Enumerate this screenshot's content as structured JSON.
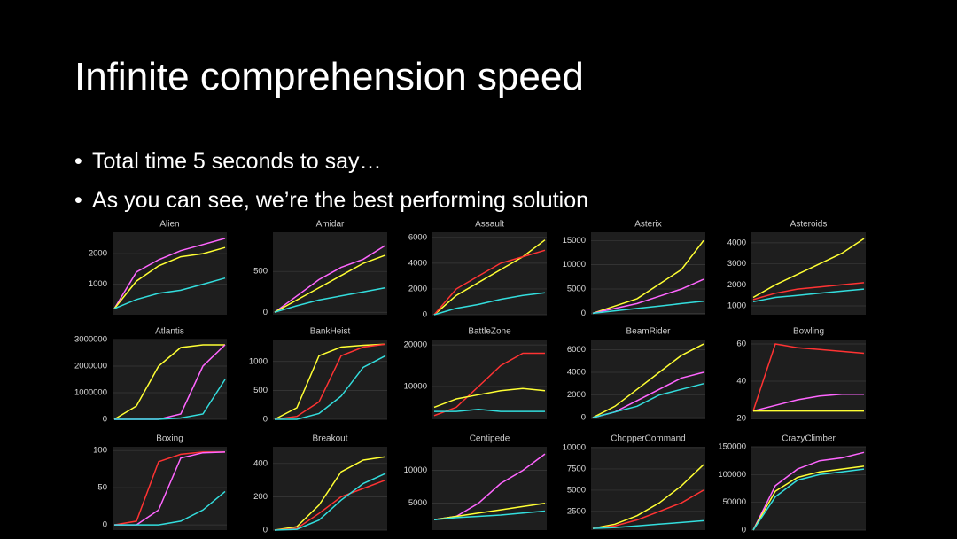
{
  "slide": {
    "title": "Infinite comprehension speed",
    "bullets": [
      "Total time 5 seconds to say…",
      "As you can see, we’re the best performing solution"
    ]
  },
  "chart_data": [
    {
      "type": "line",
      "title": "Alien",
      "ylim": [
        0,
        2700
      ],
      "yticks": [
        1000,
        2000
      ],
      "series": [
        {
          "color": "#ff66ff",
          "values": [
            200,
            1400,
            1800,
            2100,
            2300,
            2500
          ]
        },
        {
          "color": "#ffff33",
          "values": [
            200,
            1100,
            1600,
            1900,
            2000,
            2200
          ]
        },
        {
          "color": "#33dddd",
          "values": [
            200,
            500,
            700,
            800,
            1000,
            1200
          ]
        }
      ]
    },
    {
      "type": "line",
      "title": "Amidar",
      "ylim": [
        -30,
        980
      ],
      "yticks": [
        0,
        500
      ],
      "series": [
        {
          "color": "#ff66ff",
          "values": [
            0,
            200,
            400,
            550,
            650,
            820
          ]
        },
        {
          "color": "#ffff33",
          "values": [
            0,
            150,
            300,
            450,
            600,
            700
          ]
        },
        {
          "color": "#33dddd",
          "values": [
            0,
            80,
            150,
            200,
            250,
            300
          ]
        }
      ]
    },
    {
      "type": "line",
      "title": "Assault",
      "ylim": [
        0,
        6400
      ],
      "yticks": [
        0,
        2000,
        4000,
        6000
      ],
      "series": [
        {
          "color": "#ffff33",
          "values": [
            0,
            1500,
            2500,
            3500,
            4500,
            5800
          ]
        },
        {
          "color": "#ff3333",
          "values": [
            0,
            2000,
            3000,
            4000,
            4500,
            5000
          ]
        },
        {
          "color": "#33dddd",
          "values": [
            0,
            500,
            800,
            1200,
            1500,
            1700
          ]
        }
      ]
    },
    {
      "type": "line",
      "title": "Asterix",
      "ylim": [
        -300,
        16700
      ],
      "yticks": [
        0,
        5000,
        10000,
        15000
      ],
      "series": [
        {
          "color": "#ffff33",
          "values": [
            0,
            1500,
            3000,
            6000,
            9000,
            15000
          ]
        },
        {
          "color": "#ff66ff",
          "values": [
            0,
            1000,
            2000,
            3500,
            5000,
            7000
          ]
        },
        {
          "color": "#33dddd",
          "values": [
            0,
            500,
            1000,
            1500,
            2000,
            2500
          ]
        }
      ]
    },
    {
      "type": "line",
      "title": "Asteroids",
      "ylim": [
        580,
        4500
      ],
      "yticks": [
        1000,
        2000,
        3000,
        4000
      ],
      "series": [
        {
          "color": "#ffff33",
          "values": [
            1400,
            2000,
            2500,
            3000,
            3500,
            4200
          ]
        },
        {
          "color": "#ff3333",
          "values": [
            1300,
            1600,
            1800,
            1900,
            2000,
            2100
          ]
        },
        {
          "color": "#33dddd",
          "values": [
            1200,
            1400,
            1500,
            1600,
            1700,
            1800
          ]
        }
      ]
    },
    {
      "type": "line",
      "title": "Atlantis",
      "ylim": [
        0,
        3000000
      ],
      "yticks": [
        0,
        1000000,
        2000000,
        3000000
      ],
      "series": [
        {
          "color": "#ffff33",
          "values": [
            0,
            500000,
            2000000,
            2700000,
            2800000,
            2800000
          ]
        },
        {
          "color": "#ff66ff",
          "values": [
            0,
            0,
            0,
            200000,
            2000000,
            2800000
          ]
        },
        {
          "color": "#33dddd",
          "values": [
            0,
            0,
            0,
            50000,
            200000,
            1500000
          ]
        }
      ]
    },
    {
      "type": "line",
      "title": "BankHeist",
      "ylim": [
        0,
        1380
      ],
      "yticks": [
        0,
        500,
        1000
      ],
      "series": [
        {
          "color": "#ffff33",
          "values": [
            0,
            200,
            1100,
            1250,
            1280,
            1300
          ]
        },
        {
          "color": "#ff3333",
          "values": [
            0,
            50,
            300,
            1100,
            1250,
            1300
          ]
        },
        {
          "color": "#33dddd",
          "values": [
            0,
            0,
            100,
            400,
            900,
            1100
          ]
        }
      ]
    },
    {
      "type": "line",
      "title": "BattleZone",
      "ylim": [
        2100,
        21300
      ],
      "yticks": [
        10000,
        20000
      ],
      "series": [
        {
          "color": "#ff3333",
          "values": [
            3000,
            5000,
            10000,
            15000,
            18000,
            18000
          ]
        },
        {
          "color": "#ffff33",
          "values": [
            5000,
            7000,
            8000,
            9000,
            9500,
            9000
          ]
        },
        {
          "color": "#33dddd",
          "values": [
            4000,
            4000,
            4500,
            4000,
            4000,
            4000
          ]
        }
      ]
    },
    {
      "type": "line",
      "title": "BeamRider",
      "ylim": [
        -150,
        6900
      ],
      "yticks": [
        0,
        2000,
        4000,
        6000
      ],
      "series": [
        {
          "color": "#ffff33",
          "values": [
            0,
            1000,
            2500,
            4000,
            5500,
            6500
          ]
        },
        {
          "color": "#ff66ff",
          "values": [
            0,
            500,
            1500,
            2500,
            3500,
            4000
          ]
        },
        {
          "color": "#33dddd",
          "values": [
            0,
            500,
            1000,
            2000,
            2500,
            3000
          ]
        }
      ]
    },
    {
      "type": "line",
      "title": "Bowling",
      "ylim": [
        19.5,
        62.4
      ],
      "yticks": [
        20,
        40,
        60
      ],
      "series": [
        {
          "color": "#ff3333",
          "values": [
            24,
            60,
            58,
            57,
            56,
            55
          ]
        },
        {
          "color": "#ff66ff",
          "values": [
            24,
            27,
            30,
            32,
            33,
            33
          ]
        },
        {
          "color": "#ffff33",
          "values": [
            24,
            24,
            24,
            24,
            24,
            24
          ]
        }
      ]
    },
    {
      "type": "line",
      "title": "Boxing",
      "ylim": [
        -7,
        105
      ],
      "yticks": [
        0,
        50,
        100
      ],
      "series": [
        {
          "color": "#ff3333",
          "values": [
            0,
            5,
            85,
            95,
            98,
            98
          ]
        },
        {
          "color": "#ff66ff",
          "values": [
            0,
            0,
            20,
            90,
            97,
            98
          ]
        },
        {
          "color": "#33dddd",
          "values": [
            0,
            0,
            0,
            5,
            20,
            45
          ]
        }
      ]
    },
    {
      "type": "line",
      "title": "Breakout",
      "ylim": [
        0,
        500
      ],
      "yticks": [
        0,
        200,
        400
      ],
      "series": [
        {
          "color": "#ffff33",
          "values": [
            0,
            20,
            150,
            350,
            420,
            440
          ]
        },
        {
          "color": "#ff3333",
          "values": [
            0,
            10,
            100,
            200,
            250,
            300
          ]
        },
        {
          "color": "#33dddd",
          "values": [
            0,
            5,
            60,
            180,
            280,
            340
          ]
        }
      ]
    },
    {
      "type": "line",
      "title": "Centipede",
      "ylim": [
        900,
        13600
      ],
      "yticks": [
        5000,
        10000
      ],
      "series": [
        {
          "color": "#ff66ff",
          "values": [
            2500,
            3000,
            5000,
            8000,
            10000,
            12500
          ]
        },
        {
          "color": "#ffff33",
          "values": [
            2500,
            3000,
            3500,
            4000,
            4500,
            5000
          ]
        },
        {
          "color": "#33dddd",
          "values": [
            2500,
            2800,
            3000,
            3200,
            3500,
            3800
          ]
        }
      ]
    },
    {
      "type": "line",
      "title": "ChopperCommand",
      "ylim": [
        300,
        10100
      ],
      "yticks": [
        2500,
        5000,
        7500,
        10000
      ],
      "series": [
        {
          "color": "#ffff33",
          "values": [
            500,
            1000,
            2000,
            3500,
            5500,
            8000
          ]
        },
        {
          "color": "#ff3333",
          "values": [
            500,
            800,
            1500,
            2500,
            3500,
            5000
          ]
        },
        {
          "color": "#33dddd",
          "values": [
            500,
            600,
            800,
            1000,
            1200,
            1400
          ]
        }
      ]
    },
    {
      "type": "line",
      "title": "CrazyClimber",
      "ylim": [
        0,
        150000
      ],
      "yticks": [
        0,
        50000,
        100000,
        150000
      ],
      "series": [
        {
          "color": "#ff66ff",
          "values": [
            0,
            80000,
            110000,
            125000,
            130000,
            140000
          ]
        },
        {
          "color": "#ffff33",
          "values": [
            0,
            70000,
            95000,
            105000,
            110000,
            115000
          ]
        },
        {
          "color": "#33dddd",
          "values": [
            0,
            60000,
            90000,
            100000,
            105000,
            110000
          ]
        }
      ]
    }
  ]
}
